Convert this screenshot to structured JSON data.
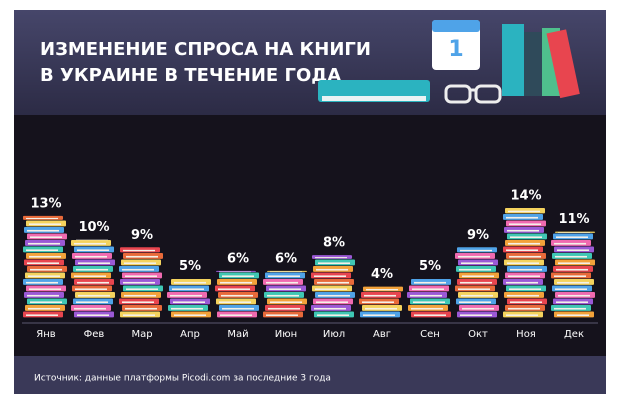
{
  "chart_data": {
    "type": "book-stacks",
    "title_lines": [
      "ИЗМЕНЕНИЕ СПРОСА НА КНИГИ",
      "В УКРАИНЕ В ТЕЧЕНИЕ ГОДА"
    ],
    "calendar_day": "1",
    "categories": [
      "Янв",
      "Фев",
      "Мар",
      "Апр",
      "Май",
      "Июн",
      "Июл",
      "Авг",
      "Сен",
      "Окт",
      "Ноя",
      "Дек"
    ],
    "values": [
      13,
      10,
      9,
      5,
      6,
      6,
      8,
      4,
      5,
      9,
      14,
      11
    ],
    "value_labels": [
      "13%",
      "10%",
      "9%",
      "5%",
      "6%",
      "6%",
      "8%",
      "4%",
      "5%",
      "9%",
      "14%",
      "11%"
    ],
    "book_colors": [
      "#e8454f",
      "#f3a23a",
      "#3fc7b4",
      "#9b59d6",
      "#f06ab0",
      "#4fa3e8",
      "#f4d35e",
      "#e86a3a"
    ],
    "source": "Источник: данные платформы Picodi.com за последние 3 года"
  }
}
